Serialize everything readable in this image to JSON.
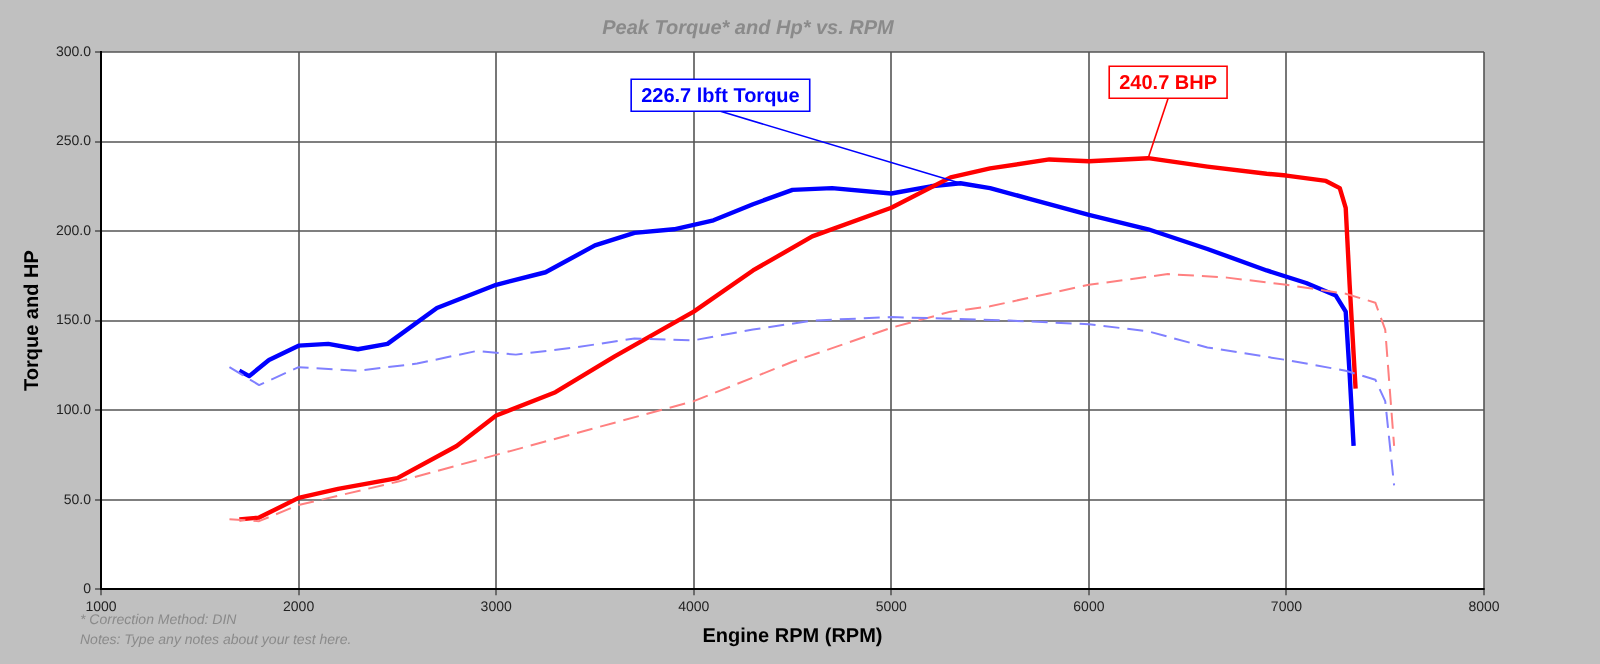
{
  "chart_data": {
    "type": "line",
    "title": "Peak Torque* and Hp* vs. RPM",
    "xlabel": "Engine RPM (RPM)",
    "ylabel": "Torque and HP",
    "xlim": [
      1000,
      8000
    ],
    "xticks": [
      1000,
      2000,
      3000,
      4000,
      5000,
      6000,
      7000,
      8000
    ],
    "ylim": [
      0,
      300
    ],
    "yticks": [
      {
        "value": 0,
        "label": "0"
      },
      {
        "value": 50,
        "label": "50.0"
      },
      {
        "value": 100,
        "label": "100.0"
      },
      {
        "value": 150,
        "label": "150.0"
      },
      {
        "value": 200,
        "label": "200.0"
      },
      {
        "value": 250,
        "label": "250.0"
      },
      {
        "value": 300,
        "label": "300.0"
      }
    ],
    "grid": true,
    "legend": false,
    "marker": "none",
    "series": [
      {
        "color": "#0000ff",
        "line_style": "solid",
        "x": [
          1700,
          1750,
          1850,
          2000,
          2150,
          2300,
          2450,
          2700,
          3000,
          3250,
          3500,
          3700,
          3900,
          4100,
          4300,
          4500,
          4700,
          5000,
          5200,
          5350,
          5500,
          5700,
          6000,
          6300,
          6600,
          6900,
          7100,
          7250,
          7300,
          7320,
          7340
        ],
        "values": [
          122,
          119,
          128,
          136,
          137,
          134,
          137,
          157,
          170,
          177,
          192,
          199,
          201,
          206,
          215,
          223,
          224,
          221,
          225,
          226.7,
          224,
          218,
          209,
          201,
          190,
          178,
          171,
          164,
          155,
          120,
          80
        ]
      },
      {
        "color": "#ff0000",
        "line_style": "solid",
        "x": [
          1700,
          1800,
          2000,
          2200,
          2500,
          2800,
          3000,
          3300,
          3600,
          4000,
          4300,
          4600,
          5000,
          5300,
          5500,
          5800,
          6000,
          6300,
          6600,
          6900,
          7000,
          7200,
          7270,
          7300,
          7320,
          7350
        ],
        "values": [
          39,
          40,
          51,
          56,
          62,
          80,
          97,
          110,
          130,
          155,
          178,
          197,
          213,
          230,
          235,
          240,
          239,
          240.7,
          236,
          232,
          231,
          228,
          224,
          213,
          170,
          112
        ]
      },
      {
        "color": "#ff8080",
        "line_style": "dashed",
        "x": [
          1650,
          1800,
          2000,
          2500,
          3000,
          3500,
          4000,
          4500,
          5000,
          5300,
          5500,
          6000,
          6400,
          6700,
          7000,
          7300,
          7450,
          7500,
          7545
        ],
        "values": [
          39,
          38,
          47,
          60,
          75,
          90,
          105,
          127,
          146,
          155,
          158,
          170,
          176,
          174,
          170,
          165,
          160,
          145,
          80
        ]
      },
      {
        "color": "#8080ff",
        "line_style": "dashed",
        "x": [
          1650,
          1800,
          2000,
          2300,
          2600,
          2900,
          3100,
          3400,
          3700,
          4000,
          4300,
          4600,
          5000,
          5300,
          5600,
          6000,
          6300,
          6600,
          7000,
          7300,
          7450,
          7500,
          7545
        ],
        "values": [
          124,
          114,
          124,
          122,
          126,
          133,
          131,
          135,
          140,
          139,
          145,
          150,
          152,
          151,
          150,
          148,
          144,
          135,
          128,
          122,
          117,
          105,
          58
        ]
      }
    ],
    "annotations": [
      {
        "text": "226.7 lbft Torque",
        "x": 5350,
        "y": 226.7
      },
      {
        "text": "240.7 BHP",
        "x": 6300,
        "y": 240.7
      },
      "* Correction Method: DIN",
      "Notes: Type any notes about your test here."
    ]
  }
}
